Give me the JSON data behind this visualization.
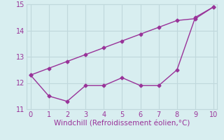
{
  "line1_x": [
    0,
    1,
    2,
    3,
    4,
    5,
    6,
    7,
    8,
    9,
    10
  ],
  "line1_y": [
    12.3,
    11.5,
    11.3,
    11.9,
    11.9,
    12.2,
    11.9,
    11.9,
    12.5,
    14.5,
    14.9
  ],
  "line2_x": [
    0,
    1,
    2,
    3,
    4,
    5,
    6,
    7,
    8,
    9,
    10
  ],
  "line2_y": [
    12.3,
    12.56,
    12.82,
    13.08,
    13.34,
    13.6,
    13.86,
    14.12,
    14.38,
    14.45,
    14.9
  ],
  "line_color": "#993399",
  "marker": "D",
  "marker_size": 2.5,
  "xlim": [
    -0.2,
    10.2
  ],
  "ylim": [
    11,
    15
  ],
  "xticks": [
    0,
    1,
    2,
    3,
    4,
    5,
    6,
    7,
    8,
    9,
    10
  ],
  "yticks": [
    11,
    12,
    13,
    14,
    15
  ],
  "xlabel": "Windchill (Refroidissement éolien,°C)",
  "background_color": "#d8eef0",
  "grid_color": "#c0d8dc",
  "tick_label_color": "#993399",
  "xlabel_color": "#993399",
  "tick_fontsize": 7,
  "xlabel_fontsize": 7.5
}
